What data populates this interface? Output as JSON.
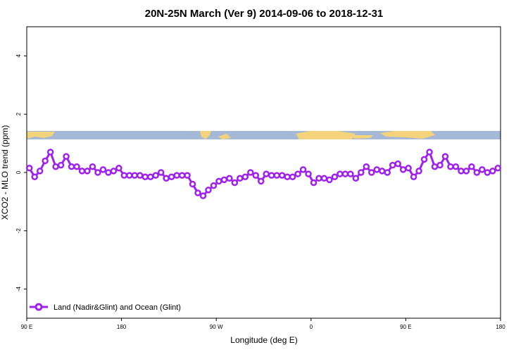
{
  "chart_data": {
    "type": "line",
    "title": "20N-25N March (Ver 9)   2014-09-06 to 2018-12-31",
    "x_label": "Longitude (deg E)",
    "y_label": "XCO2 - MLO trend (ppm)",
    "xlim": [
      90,
      540
    ],
    "xticks": [
      {
        "value": 90,
        "label": "90 E"
      },
      180,
      {
        "value": 270,
        "label": "90 W"
      },
      {
        "value": 360,
        "label": "0"
      },
      {
        "value": 450,
        "label": "90 E"
      },
      {
        "value": 540,
        "label": "180"
      }
    ],
    "ylim": [
      -5,
      5
    ],
    "yticks": [
      -4,
      -2,
      0,
      2,
      4
    ],
    "legend": "bottom-left",
    "x": [
      92.5,
      97.5,
      102.5,
      107.5,
      112.5,
      117.5,
      122.5,
      127.5,
      132.5,
      137.5,
      142.5,
      147.5,
      152.5,
      157.5,
      162.5,
      167.5,
      172.5,
      177.5,
      182.5,
      187.5,
      192.5,
      197.5,
      202.5,
      207.5,
      212.5,
      217.5,
      222.5,
      227.5,
      232.5,
      237.5,
      242.5,
      247.5,
      252.5,
      257.5,
      262.5,
      267.5,
      272.5,
      277.5,
      282.5,
      287.5,
      292.5,
      297.5,
      302.5,
      307.5,
      312.5,
      317.5,
      322.5,
      327.5,
      332.5,
      337.5,
      342.5,
      347.5,
      352.5,
      357.5,
      362.5,
      367.5,
      372.5,
      377.5,
      382.5,
      387.5,
      392.5,
      397.5,
      402.5,
      407.5,
      412.5,
      417.5,
      422.5,
      427.5,
      432.5,
      437.5,
      442.5,
      447.5,
      452.5,
      457.5,
      462.5,
      467.5,
      472.5,
      477.5,
      482.5,
      487.5,
      492.5,
      497.5,
      502.5,
      507.5,
      512.5,
      517.5,
      522.5,
      527.5,
      532.5,
      537.5
    ],
    "series": [
      {
        "name": "Land (Nadir&Glint) and Ocean (Glint)",
        "color": "#a020f0",
        "values": [
          0.15,
          -0.15,
          0.05,
          0.4,
          0.7,
          0.2,
          0.25,
          0.55,
          0.2,
          0.2,
          0.05,
          0.05,
          0.2,
          0.0,
          0.1,
          0.0,
          0.05,
          0.15,
          -0.1,
          -0.1,
          -0.1,
          -0.1,
          -0.15,
          -0.15,
          -0.1,
          0.0,
          -0.2,
          -0.15,
          -0.1,
          -0.1,
          -0.1,
          -0.4,
          -0.7,
          -0.8,
          -0.6,
          -0.45,
          -0.3,
          -0.25,
          -0.2,
          -0.35,
          -0.2,
          -0.15,
          0.0,
          -0.1,
          -0.3,
          -0.05,
          -0.1,
          -0.1,
          -0.1,
          -0.15,
          -0.15,
          -0.05,
          0.1,
          -0.05,
          -0.35,
          -0.2,
          -0.2,
          -0.25,
          -0.15,
          -0.05,
          -0.05,
          -0.05,
          -0.2,
          0.0,
          0.2,
          0.0,
          0.1,
          0.05,
          0.0,
          0.25,
          0.3,
          0.1,
          0.15,
          -0.15,
          0.05,
          0.45,
          0.7,
          0.2,
          0.25,
          0.55,
          0.2,
          0.2,
          0.05,
          0.05,
          0.2,
          0.0,
          0.1,
          0.0,
          0.05,
          0.15
        ]
      }
    ]
  }
}
